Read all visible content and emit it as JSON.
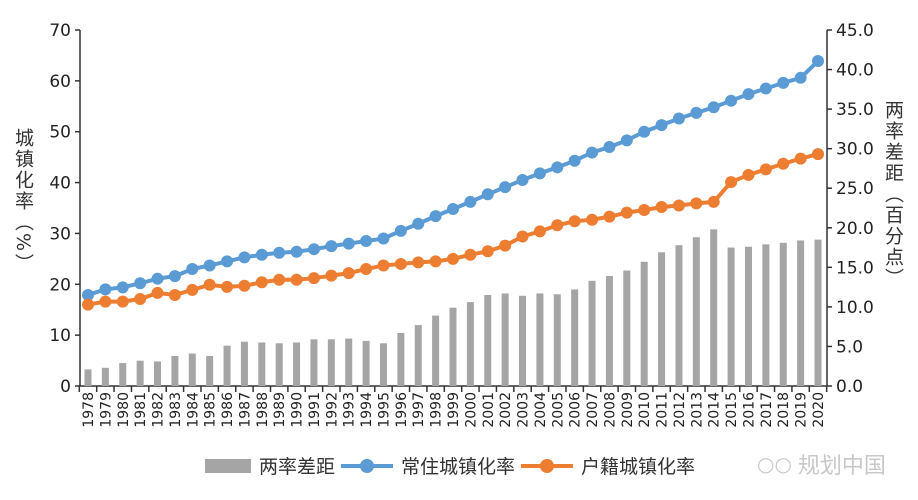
{
  "chart_data": {
    "type": "bar+line",
    "title": "",
    "xlabel": "",
    "ylabel_left": "城镇化率（%）",
    "ylabel_right": "两率差距（百分点）",
    "ylim_left": [
      0,
      70
    ],
    "ylim_right": [
      0,
      45
    ],
    "yticks_left": [
      "0",
      "10",
      "20",
      "30",
      "40",
      "50",
      "60",
      "70"
    ],
    "yticks_right": [
      "0.0",
      "5.0",
      "10.0",
      "15.0",
      "20.0",
      "25.0",
      "30.0",
      "35.0",
      "40.0",
      "45.0"
    ],
    "grid": false,
    "legend_position": "bottom",
    "categories": [
      "1978",
      "1979",
      "1980",
      "1981",
      "1982",
      "1983",
      "1984",
      "1985",
      "1986",
      "1987",
      "1988",
      "1989",
      "1990",
      "1991",
      "1992",
      "1993",
      "1994",
      "1995",
      "1996",
      "1997",
      "1998",
      "1999",
      "2000",
      "2001",
      "2002",
      "2003",
      "2004",
      "2005",
      "2006",
      "2007",
      "2008",
      "2009",
      "2010",
      "2011",
      "2012",
      "2013",
      "2014",
      "2015",
      "2016",
      "2017",
      "2018",
      "2019",
      "2020"
    ],
    "series": [
      {
        "name": "两率差距",
        "type": "bar",
        "axis": "right",
        "color": "#a5a5a5",
        "values": [
          2.1,
          2.3,
          2.9,
          3.2,
          3.1,
          3.8,
          4.1,
          3.8,
          5.1,
          5.6,
          5.5,
          5.4,
          5.5,
          5.9,
          5.9,
          6.0,
          5.7,
          5.4,
          6.7,
          7.7,
          8.9,
          9.9,
          10.6,
          11.5,
          11.7,
          11.4,
          11.7,
          11.6,
          12.2,
          13.3,
          13.9,
          14.6,
          15.7,
          16.9,
          17.8,
          18.8,
          19.8,
          17.5,
          17.6,
          17.9,
          18.1,
          18.4,
          18.5
        ]
      },
      {
        "name": "常住城镇化率",
        "type": "line",
        "axis": "left",
        "color": "#5b9bd5",
        "values": [
          17.9,
          19.0,
          19.4,
          20.2,
          21.1,
          21.6,
          23.0,
          23.7,
          24.5,
          25.3,
          25.8,
          26.2,
          26.4,
          26.9,
          27.5,
          28.0,
          28.5,
          29.0,
          30.5,
          31.9,
          33.4,
          34.8,
          36.2,
          37.7,
          39.1,
          40.5,
          41.8,
          43.0,
          44.3,
          45.9,
          47.0,
          48.3,
          50.0,
          51.3,
          52.6,
          53.7,
          54.8,
          56.1,
          57.4,
          58.5,
          59.6,
          60.6,
          63.9
        ]
      },
      {
        "name": "户籍城镇化率",
        "type": "line",
        "axis": "left",
        "color": "#ed7d31",
        "values": [
          16.0,
          16.6,
          16.6,
          17.1,
          18.3,
          17.9,
          18.9,
          19.9,
          19.5,
          19.7,
          20.4,
          20.9,
          20.9,
          21.2,
          21.7,
          22.2,
          23.0,
          23.7,
          24.0,
          24.3,
          24.5,
          25.0,
          25.8,
          26.5,
          27.6,
          29.4,
          30.4,
          31.6,
          32.4,
          32.7,
          33.3,
          34.1,
          34.6,
          35.2,
          35.5,
          35.9,
          36.2,
          40.1,
          41.5,
          42.6,
          43.7,
          44.7,
          45.6
        ]
      }
    ]
  },
  "legend": {
    "bar": "两率差距",
    "line1": "常住城镇化率",
    "line2": "户籍城镇化率"
  },
  "watermark": "规划中国"
}
